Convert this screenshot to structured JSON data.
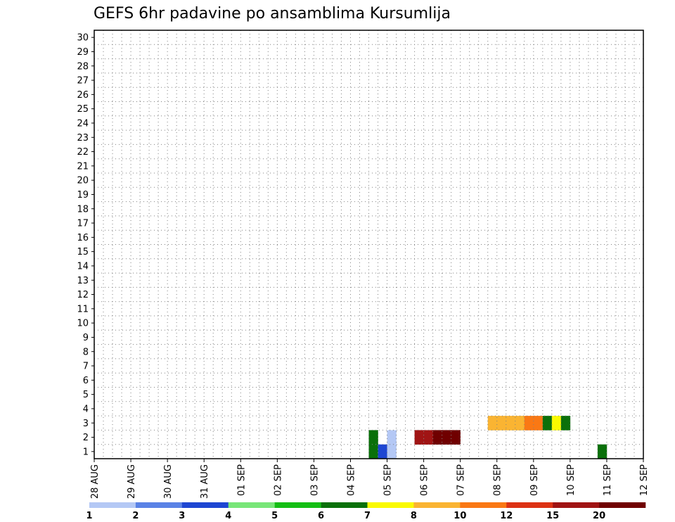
{
  "chart_data": {
    "type": "heatmap",
    "title": "GEFS 6hr padavine po ansamblima Kursumlija",
    "xlabel": "",
    "ylabel": "",
    "x_ticks": [
      "28 AUG",
      "29 AUG",
      "30 AUG",
      "31 AUG",
      "01 SEP",
      "02 SEP",
      "03 SEP",
      "04 SEP",
      "05 SEP",
      "06 SEP",
      "07 SEP",
      "08 SEP",
      "09 SEP",
      "10 SEP",
      "11 SEP",
      "12 SEP"
    ],
    "y_ticks": [
      "1",
      "2",
      "3",
      "4",
      "5",
      "6",
      "7",
      "8",
      "9",
      "10",
      "11",
      "12",
      "13",
      "14",
      "15",
      "16",
      "17",
      "18",
      "19",
      "20",
      "21",
      "22",
      "23",
      "24",
      "25",
      "26",
      "27",
      "28",
      "29",
      "30"
    ],
    "members": 30,
    "time_steps_per_day": 4,
    "grid": "dotted",
    "colorbar": {
      "labels": [
        "1",
        "2",
        "3",
        "4",
        "5",
        "6",
        "7",
        "8",
        "10",
        "12",
        "15",
        "20"
      ],
      "colors": [
        "#b4c8f5",
        "#5a82e6",
        "#1e46d2",
        "#78e678",
        "#14be14",
        "#0a700a",
        "#fafa00",
        "#fab432",
        "#fa7814",
        "#dc3214",
        "#a01414",
        "#700000"
      ]
    },
    "cells": [
      [
        1,
        30,
        5
      ],
      [
        1,
        31,
        2
      ],
      [
        1,
        32,
        0
      ],
      [
        1,
        55,
        5
      ],
      [
        2,
        30,
        5
      ],
      [
        2,
        32,
        0
      ],
      [
        2,
        35,
        10
      ],
      [
        2,
        36,
        10
      ],
      [
        2,
        37,
        11
      ],
      [
        2,
        38,
        11
      ],
      [
        2,
        39,
        11
      ],
      [
        3,
        43,
        7
      ],
      [
        3,
        44,
        7
      ],
      [
        3,
        45,
        7
      ],
      [
        3,
        46,
        7
      ],
      [
        3,
        47,
        8
      ],
      [
        3,
        48,
        8
      ],
      [
        3,
        49,
        5
      ],
      [
        3,
        50,
        6
      ],
      [
        3,
        51,
        5
      ]
    ]
  },
  "colors": {
    "frame": "#000000",
    "grid": "#808080",
    "background": "#ffffff"
  }
}
